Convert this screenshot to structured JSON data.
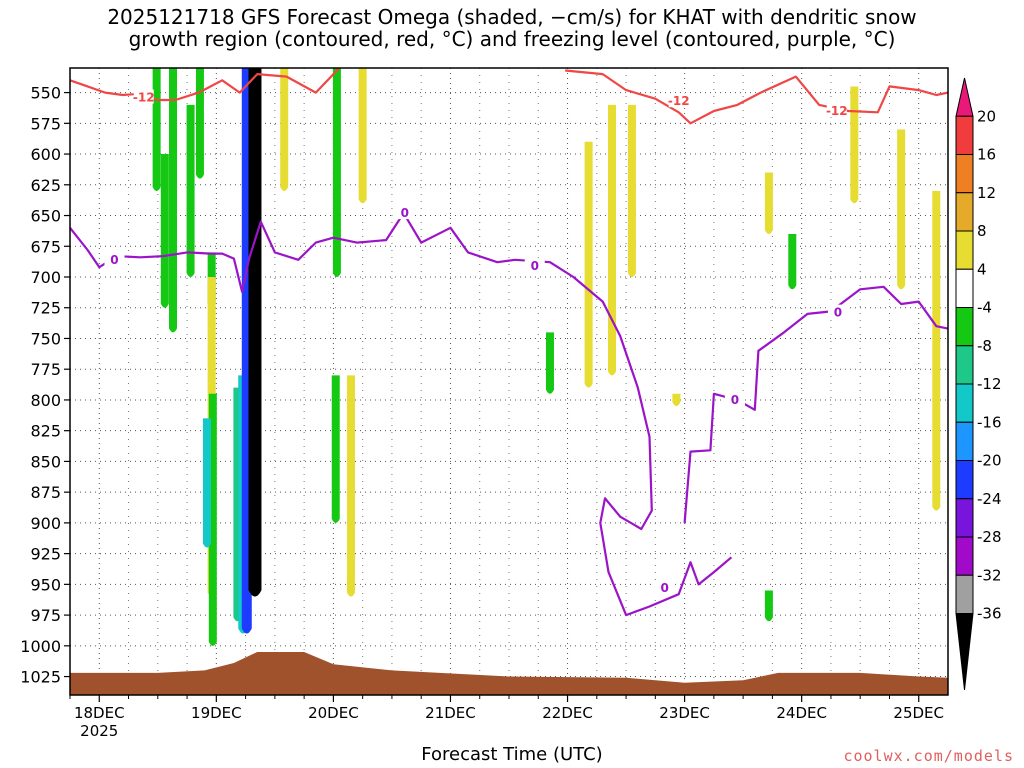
{
  "title_line1": "2025121718 GFS Forecast Omega (shaded, −cm/s) for KHAT with dendritic snow",
  "title_line2": "growth region (contoured, red, °C) and freezing level (contoured, purple, °C)",
  "credit": "coolwx.com/models",
  "chart_data": {
    "type": "heatmap",
    "xlabel": "Forecast Time (UTC)",
    "ylabel": "",
    "x_ticks": [
      "18DEC",
      "19DEC",
      "20DEC",
      "21DEC",
      "22DEC",
      "23DEC",
      "24DEC",
      "25DEC"
    ],
    "x_year_label": "2025",
    "x_range_days": [
      17.75,
      25.25
    ],
    "y_ticks": [
      550,
      575,
      600,
      625,
      650,
      675,
      700,
      725,
      750,
      775,
      800,
      825,
      850,
      875,
      900,
      925,
      950,
      975,
      1000,
      1025
    ],
    "y_range_hpa": [
      530,
      1040
    ],
    "grid": true,
    "colorbar": {
      "labels": [
        20,
        16,
        12,
        8,
        4,
        -4,
        -8,
        -12,
        -16,
        -20,
        -24,
        -28,
        -32,
        -36
      ],
      "colors": [
        "#e8197a",
        "#f03c3c",
        "#ee7f23",
        "#e6aa2a",
        "#e6dc32",
        "#ffffff",
        "#14c814",
        "#1ec888",
        "#12c8c8",
        "#1e96ff",
        "#1e3cff",
        "#7814dc",
        "#a00ac8",
        "#a0a0a0",
        "#000000"
      ]
    },
    "shaded_omega": [
      {
        "day": 18.63,
        "p_top": 530,
        "p_bot": 745,
        "value": -6
      },
      {
        "day": 18.49,
        "p_top": 530,
        "p_bot": 630,
        "value": -6
      },
      {
        "day": 18.56,
        "p_top": 600,
        "p_bot": 725,
        "value": -5
      },
      {
        "day": 18.78,
        "p_top": 560,
        "p_bot": 700,
        "value": -6
      },
      {
        "day": 18.86,
        "p_top": 530,
        "p_bot": 620,
        "value": -5
      },
      {
        "day": 18.96,
        "p_top": 680,
        "p_bot": 725,
        "value": -5
      },
      {
        "day": 18.97,
        "p_top": 795,
        "p_bot": 1000,
        "value": -6
      },
      {
        "day": 18.92,
        "p_top": 815,
        "p_bot": 920,
        "value": -12
      },
      {
        "day": 19.18,
        "p_top": 790,
        "p_bot": 980,
        "value": -8
      },
      {
        "day": 19.23,
        "p_top": 780,
        "p_bot": 990,
        "value": -14
      },
      {
        "day": 19.26,
        "p_top": 530,
        "p_bot": 990,
        "value": -20
      },
      {
        "day": 19.33,
        "p_top": 530,
        "p_bot": 960,
        "value": -40
      },
      {
        "day": 20.03,
        "p_top": 530,
        "p_bot": 700,
        "value": -6
      },
      {
        "day": 20.02,
        "p_top": 780,
        "p_bot": 900,
        "value": -6
      },
      {
        "day": 21.85,
        "p_top": 745,
        "p_bot": 795,
        "value": -6
      },
      {
        "day": 23.92,
        "p_top": 665,
        "p_bot": 710,
        "value": -6
      },
      {
        "day": 23.72,
        "p_top": 955,
        "p_bot": 980,
        "value": -6
      },
      {
        "day": 22.18,
        "p_top": 590,
        "p_bot": 790,
        "value": 5
      },
      {
        "day": 22.38,
        "p_top": 560,
        "p_bot": 780,
        "value": 5
      },
      {
        "day": 22.55,
        "p_top": 560,
        "p_bot": 700,
        "value": 5
      },
      {
        "day": 20.25,
        "p_top": 530,
        "p_bot": 640,
        "value": 5
      },
      {
        "day": 20.15,
        "p_top": 780,
        "p_bot": 960,
        "value": 5
      },
      {
        "day": 19.58,
        "p_top": 530,
        "p_bot": 630,
        "value": 5
      },
      {
        "day": 18.96,
        "p_top": 700,
        "p_bot": 960,
        "value": 5
      },
      {
        "day": 24.45,
        "p_top": 545,
        "p_bot": 640,
        "value": 5
      },
      {
        "day": 24.85,
        "p_top": 580,
        "p_bot": 710,
        "value": 5
      },
      {
        "day": 25.15,
        "p_top": 630,
        "p_bot": 890,
        "value": 5
      },
      {
        "day": 23.72,
        "p_top": 615,
        "p_bot": 665,
        "value": 5
      },
      {
        "day": 22.93,
        "p_top": 795,
        "p_bot": 805,
        "value": 5
      }
    ],
    "dendritic_minus12_label": "-12",
    "dendritic_minus12_contour": [
      {
        "day": 17.75,
        "p": 540
      },
      {
        "day": 17.9,
        "p": 545
      },
      {
        "day": 18.05,
        "p": 550
      },
      {
        "day": 18.2,
        "p": 552
      },
      {
        "day": 18.35,
        "p": 551
      },
      {
        "day": 18.5,
        "p": 556
      },
      {
        "day": 18.65,
        "p": 556
      },
      {
        "day": 18.85,
        "p": 550
      },
      {
        "day": 19.05,
        "p": 540
      },
      {
        "day": 19.2,
        "p": 550
      },
      {
        "day": 19.35,
        "p": 535
      },
      {
        "day": 19.6,
        "p": 537
      },
      {
        "day": 19.85,
        "p": 550
      },
      {
        "day": 20.05,
        "p": 530
      }
    ],
    "dendritic_minus12_contour_2": [
      {
        "day": 21.98,
        "p": 532
      },
      {
        "day": 22.3,
        "p": 535
      },
      {
        "day": 22.5,
        "p": 548
      },
      {
        "day": 22.75,
        "p": 555
      },
      {
        "day": 22.95,
        "p": 566
      },
      {
        "day": 23.05,
        "p": 575
      },
      {
        "day": 23.25,
        "p": 565
      },
      {
        "day": 23.45,
        "p": 560
      },
      {
        "day": 23.65,
        "p": 550
      },
      {
        "day": 23.95,
        "p": 537
      },
      {
        "day": 24.15,
        "p": 560
      },
      {
        "day": 24.4,
        "p": 565
      },
      {
        "day": 24.65,
        "p": 566
      },
      {
        "day": 24.75,
        "p": 545
      },
      {
        "day": 25.0,
        "p": 548
      },
      {
        "day": 25.15,
        "p": 552
      },
      {
        "day": 25.25,
        "p": 550
      }
    ],
    "freezing_level_label": "0",
    "freezing_level_contour": [
      {
        "day": 17.75,
        "p": 660
      },
      {
        "day": 17.9,
        "p": 678
      },
      {
        "day": 18.0,
        "p": 692
      },
      {
        "day": 18.15,
        "p": 683
      },
      {
        "day": 18.35,
        "p": 684
      },
      {
        "day": 18.55,
        "p": 683
      },
      {
        "day": 18.75,
        "p": 680
      },
      {
        "day": 18.95,
        "p": 681
      },
      {
        "day": 19.05,
        "p": 681
      },
      {
        "day": 19.15,
        "p": 685
      },
      {
        "day": 19.22,
        "p": 712
      },
      {
        "day": 19.28,
        "p": 685
      },
      {
        "day": 19.38,
        "p": 655
      },
      {
        "day": 19.5,
        "p": 680
      },
      {
        "day": 19.7,
        "p": 686
      },
      {
        "day": 19.85,
        "p": 672
      },
      {
        "day": 20.0,
        "p": 668
      },
      {
        "day": 20.2,
        "p": 672
      },
      {
        "day": 20.45,
        "p": 670
      },
      {
        "day": 20.6,
        "p": 648
      },
      {
        "day": 20.75,
        "p": 672
      },
      {
        "day": 21.0,
        "p": 660
      },
      {
        "day": 21.15,
        "p": 680
      },
      {
        "day": 21.4,
        "p": 688
      },
      {
        "day": 21.55,
        "p": 686
      },
      {
        "day": 21.85,
        "p": 688
      },
      {
        "day": 22.05,
        "p": 700
      },
      {
        "day": 22.3,
        "p": 720
      },
      {
        "day": 22.45,
        "p": 748
      },
      {
        "day": 22.6,
        "p": 790
      },
      {
        "day": 22.7,
        "p": 830
      },
      {
        "day": 22.72,
        "p": 890
      },
      {
        "day": 22.63,
        "p": 905
      },
      {
        "day": 22.45,
        "p": 895
      },
      {
        "day": 22.32,
        "p": 880
      },
      {
        "day": 22.28,
        "p": 900
      },
      {
        "day": 22.35,
        "p": 940
      },
      {
        "day": 22.5,
        "p": 975
      },
      {
        "day": 22.7,
        "p": 968
      },
      {
        "day": 22.95,
        "p": 958
      },
      {
        "day": 23.05,
        "p": 932
      },
      {
        "day": 23.12,
        "p": 950
      },
      {
        "day": 23.25,
        "p": 940
      },
      {
        "day": 23.4,
        "p": 928
      }
    ],
    "freezing_level_contour_2": [
      {
        "day": 23.0,
        "p": 900
      },
      {
        "day": 23.05,
        "p": 842
      },
      {
        "day": 23.22,
        "p": 841
      },
      {
        "day": 23.25,
        "p": 795
      },
      {
        "day": 23.45,
        "p": 800
      },
      {
        "day": 23.6,
        "p": 808
      },
      {
        "day": 23.63,
        "p": 760
      },
      {
        "day": 23.85,
        "p": 745
      },
      {
        "day": 24.05,
        "p": 730
      },
      {
        "day": 24.25,
        "p": 728
      },
      {
        "day": 24.5,
        "p": 710
      },
      {
        "day": 24.7,
        "p": 708
      },
      {
        "day": 24.85,
        "p": 722
      },
      {
        "day": 25.0,
        "p": 720
      },
      {
        "day": 25.15,
        "p": 740
      },
      {
        "day": 25.25,
        "p": 742
      }
    ],
    "terrain_surface": [
      {
        "day": 17.75,
        "p": 1022
      },
      {
        "day": 18.5,
        "p": 1022
      },
      {
        "day": 18.9,
        "p": 1020
      },
      {
        "day": 19.15,
        "p": 1014
      },
      {
        "day": 19.35,
        "p": 1005
      },
      {
        "day": 19.75,
        "p": 1005
      },
      {
        "day": 20.0,
        "p": 1015
      },
      {
        "day": 20.5,
        "p": 1020
      },
      {
        "day": 21.5,
        "p": 1025
      },
      {
        "day": 22.5,
        "p": 1026
      },
      {
        "day": 23.0,
        "p": 1030
      },
      {
        "day": 23.5,
        "p": 1028
      },
      {
        "day": 23.8,
        "p": 1022
      },
      {
        "day": 24.5,
        "p": 1022
      },
      {
        "day": 25.0,
        "p": 1025
      },
      {
        "day": 25.25,
        "p": 1026
      }
    ]
  }
}
